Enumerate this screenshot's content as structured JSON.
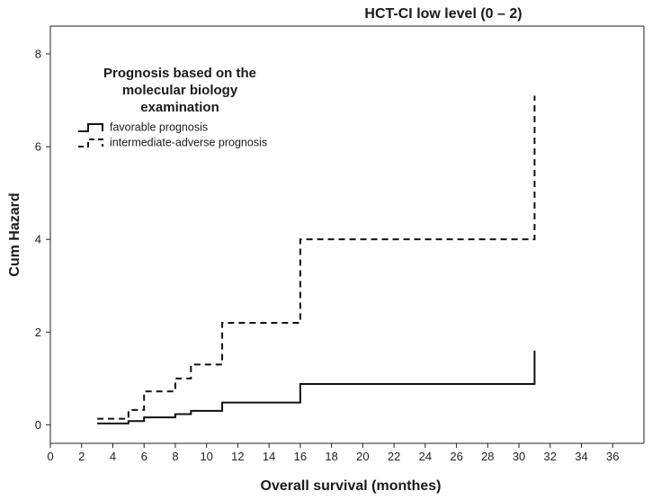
{
  "chart_data": {
    "type": "line",
    "title": "HCT-CI low level (0 – 2)",
    "xlabel": "Overall survival (monthes)",
    "ylabel": "Cum Hazard",
    "xlim": [
      0,
      38
    ],
    "ylim": [
      -0.4,
      8.6
    ],
    "xticks": [
      "0",
      "2",
      "4",
      "6",
      "8",
      "10",
      "12",
      "14",
      "16",
      "18",
      "20",
      "22",
      "24",
      "26",
      "28",
      "30",
      "32",
      "34",
      "36"
    ],
    "yticks": [
      "0",
      "2",
      "4",
      "6",
      "8"
    ],
    "legend": {
      "title_lines": [
        "Prognosis based on the",
        "molecular biology",
        "examination"
      ],
      "placement": "top-left"
    },
    "series": [
      {
        "name": "favorable prognosis",
        "style": "solid",
        "x": [
          3,
          5,
          6,
          8,
          9,
          11,
          16,
          31,
          31
        ],
        "y": [
          0.03,
          0.08,
          0.16,
          0.23,
          0.3,
          0.48,
          0.88,
          0.88,
          1.6
        ]
      },
      {
        "name": "intermediate-adverse prognosis",
        "style": "dashed",
        "x": [
          3,
          5,
          6,
          8,
          9,
          11,
          16,
          31,
          31
        ],
        "y": [
          0.13,
          0.32,
          0.72,
          1.0,
          1.3,
          2.2,
          4.0,
          4.0,
          7.1
        ]
      }
    ]
  }
}
